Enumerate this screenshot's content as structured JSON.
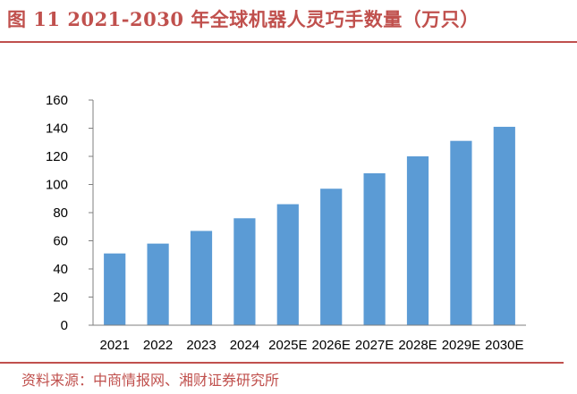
{
  "header": {
    "title": "图 11 2021-2030 年全球机器人灵巧手数量（万只）"
  },
  "footer": {
    "source": "资料来源：中商情报网、湘财证券研究所"
  },
  "colors": {
    "bar": "#5b9bd5",
    "accent": "#c0504d"
  },
  "chart_data": {
    "type": "bar",
    "title": "图 11 2021-2030 年全球机器人灵巧手数量（万只）",
    "categories": [
      "2021",
      "2022",
      "2023",
      "2024",
      "2025E",
      "2026E",
      "2027E",
      "2028E",
      "2029E",
      "2030E"
    ],
    "values": [
      51,
      58,
      67,
      76,
      86,
      97,
      108,
      120,
      131,
      141
    ],
    "ylim": [
      0,
      160
    ],
    "yticks": [
      "0",
      "20",
      "40",
      "60",
      "80",
      "100",
      "120",
      "140",
      "160"
    ],
    "grid": false,
    "legend": "none"
  }
}
